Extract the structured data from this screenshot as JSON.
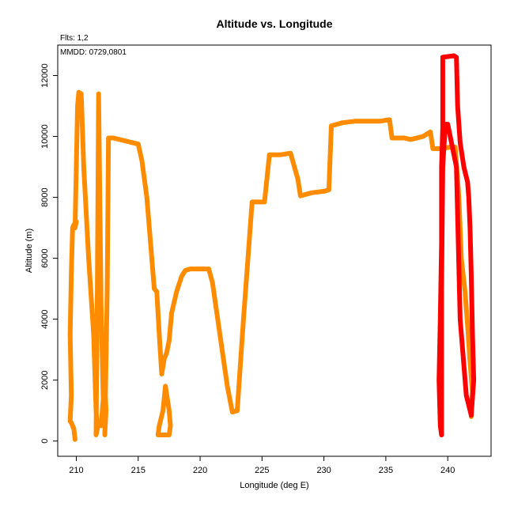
{
  "chart_data": {
    "type": "line",
    "title": "Altitude vs. Longitude",
    "xlabel": "Longitude (deg E)",
    "ylabel": "Altitude (m)",
    "annotations": {
      "flights": "Flts: 1,2",
      "dates": "MMDD: 0729,0801"
    },
    "xlim": [
      208.5,
      243.5
    ],
    "ylim": [
      -500,
      13000
    ],
    "xticks": [
      210,
      215,
      220,
      225,
      230,
      235,
      240
    ],
    "yticks": [
      0,
      2000,
      4000,
      6000,
      8000,
      10000,
      12000
    ],
    "grid": false,
    "series": [
      {
        "color": "#FF8C00",
        "points": [
          [
            209.9,
            50
          ],
          [
            209.8,
            400
          ],
          [
            209.6,
            600
          ],
          [
            209.5,
            650
          ],
          [
            209.6,
            1500
          ],
          [
            209.5,
            3500
          ],
          [
            209.6,
            5500
          ],
          [
            209.7,
            7000
          ],
          [
            209.8,
            7100
          ],
          [
            210.0,
            7200
          ],
          [
            209.9,
            7000
          ],
          [
            210.0,
            9000
          ],
          [
            210.1,
            11000
          ],
          [
            210.2,
            11450
          ],
          [
            210.4,
            11400
          ],
          [
            210.6,
            9000
          ],
          [
            211.0,
            6000
          ],
          [
            211.4,
            3500
          ],
          [
            211.6,
            1000
          ],
          [
            211.7,
            400
          ],
          [
            211.6,
            200
          ],
          [
            211.7,
            5000
          ],
          [
            211.8,
            11400
          ],
          [
            211.9,
            8000
          ],
          [
            212.0,
            4500
          ],
          [
            212.2,
            1000
          ],
          [
            212.0,
            500
          ],
          [
            212.3,
            2000
          ],
          [
            212.4,
            1000
          ],
          [
            212.3,
            200
          ],
          [
            212.5,
            5000
          ],
          [
            212.6,
            9950
          ],
          [
            213.0,
            9950
          ],
          [
            213.5,
            9900
          ],
          [
            214.0,
            9850
          ],
          [
            214.5,
            9800
          ],
          [
            215.0,
            9750
          ],
          [
            215.3,
            9200
          ],
          [
            215.7,
            8000
          ],
          [
            216.0,
            6500
          ],
          [
            216.3,
            5000
          ],
          [
            216.5,
            4900
          ],
          [
            216.7,
            3500
          ],
          [
            216.9,
            2200
          ],
          [
            217.1,
            2700
          ],
          [
            217.3,
            2900
          ],
          [
            217.5,
            3300
          ],
          [
            217.7,
            4200
          ],
          [
            218.1,
            4900
          ],
          [
            218.5,
            5400
          ],
          [
            218.8,
            5600
          ],
          [
            219.2,
            5650
          ],
          [
            220.0,
            5650
          ],
          [
            220.7,
            5650
          ],
          [
            221.0,
            5200
          ],
          [
            221.6,
            3500
          ],
          [
            222.2,
            1800
          ],
          [
            222.6,
            950
          ],
          [
            223.0,
            1000
          ],
          [
            223.5,
            4000
          ],
          [
            224.2,
            7850
          ],
          [
            225.0,
            7850
          ],
          [
            225.2,
            7850
          ],
          [
            225.6,
            9400
          ],
          [
            226.5,
            9400
          ],
          [
            227.3,
            9450
          ],
          [
            227.9,
            8600
          ],
          [
            228.1,
            8050
          ],
          [
            229.0,
            8150
          ],
          [
            230.0,
            8200
          ],
          [
            230.4,
            8250
          ],
          [
            230.6,
            10350
          ],
          [
            231.5,
            10450
          ],
          [
            232.5,
            10500
          ],
          [
            233.5,
            10500
          ],
          [
            234.5,
            10500
          ],
          [
            235.3,
            10550
          ],
          [
            235.5,
            9950
          ],
          [
            236.5,
            9950
          ],
          [
            237.0,
            9900
          ],
          [
            238.0,
            10000
          ],
          [
            238.6,
            10150
          ],
          [
            238.8,
            9600
          ],
          [
            239.5,
            9600
          ],
          [
            240.2,
            9650
          ],
          [
            240.6,
            9650
          ],
          [
            240.9,
            8000
          ],
          [
            241.1,
            6000
          ],
          [
            241.4,
            4900
          ],
          [
            241.6,
            3800
          ],
          [
            241.8,
            2600
          ],
          [
            242.0,
            1600
          ],
          [
            241.9,
            800
          ]
        ],
        "bottom_loop": [
          [
            216.6,
            200
          ],
          [
            217.5,
            200
          ],
          [
            217.6,
            500
          ],
          [
            217.5,
            1000
          ],
          [
            217.2,
            1800
          ],
          [
            217.0,
            1000
          ],
          [
            216.7,
            500
          ],
          [
            216.6,
            200
          ]
        ]
      },
      {
        "color": "#FF0000",
        "points": [
          [
            239.5,
            200
          ],
          [
            239.4,
            500
          ],
          [
            239.3,
            2000
          ],
          [
            239.4,
            4000
          ],
          [
            239.5,
            6500
          ],
          [
            239.5,
            9000
          ],
          [
            239.6,
            10300
          ],
          [
            239.6,
            12600
          ],
          [
            240.5,
            12650
          ],
          [
            240.7,
            12600
          ],
          [
            240.8,
            11000
          ],
          [
            241.0,
            9800
          ],
          [
            241.3,
            9000
          ],
          [
            241.6,
            8500
          ],
          [
            241.7,
            8000
          ],
          [
            241.8,
            7000
          ],
          [
            241.9,
            5500
          ],
          [
            242.0,
            3500
          ],
          [
            242.1,
            2000
          ],
          [
            241.9,
            850
          ]
        ],
        "return": [
          [
            241.9,
            850
          ],
          [
            241.5,
            1500
          ],
          [
            241.0,
            4000
          ],
          [
            240.7,
            9000
          ],
          [
            240.0,
            10400
          ],
          [
            239.8,
            10400
          ],
          [
            239.6,
            9000
          ],
          [
            239.5,
            5000
          ],
          [
            239.5,
            1000
          ],
          [
            239.5,
            200
          ]
        ]
      }
    ]
  }
}
